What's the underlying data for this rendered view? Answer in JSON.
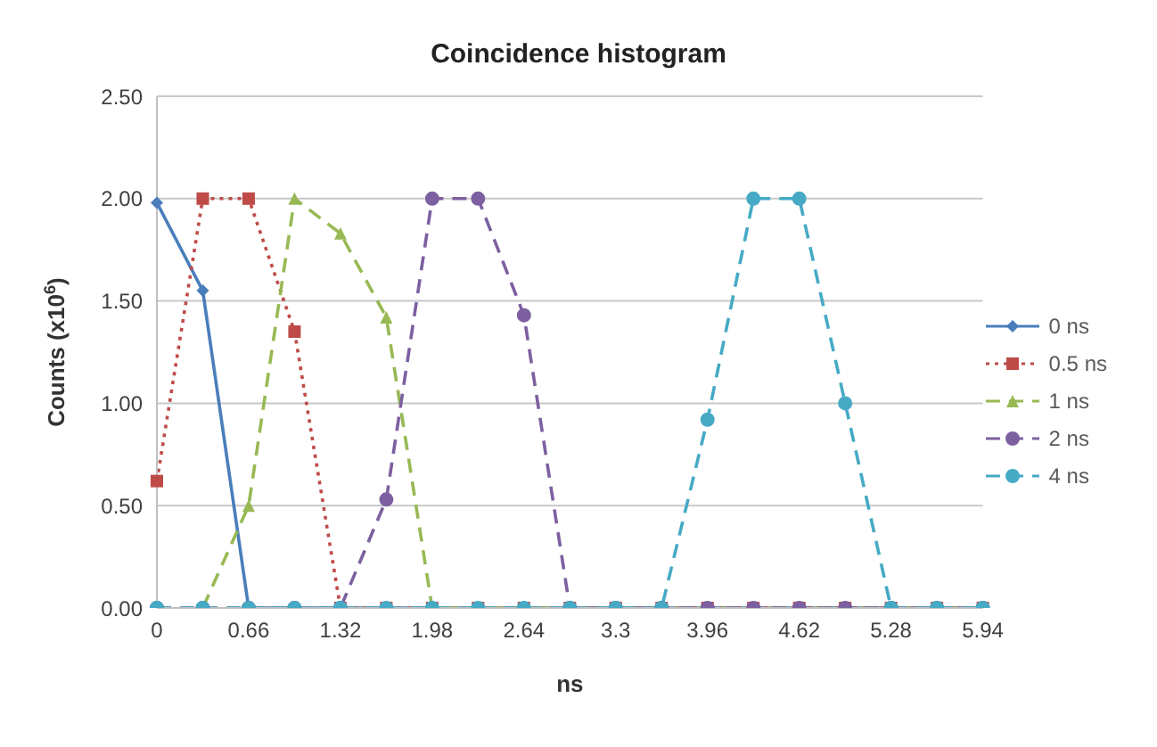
{
  "chart_data": {
    "type": "line",
    "title": "Coincidence histogram",
    "xlabel": "ns",
    "ylabel": "Counts (x10$^{6}$)",
    "categories": [
      "0",
      null,
      "0.66",
      null,
      "1.32",
      null,
      "1.98",
      null,
      "2.64",
      null,
      "3.3",
      null,
      "3.96",
      null,
      "4.62",
      null,
      "5.28",
      null,
      "5.94"
    ],
    "series": [
      {
        "name": "0 ns",
        "color": "#4a7ebb",
        "marker": "diamond",
        "line_style": "solid",
        "values": [
          1.98,
          1.55,
          0,
          0,
          0,
          0,
          0,
          0,
          0,
          0,
          0,
          0,
          0,
          0,
          0,
          0,
          0,
          0,
          0
        ]
      },
      {
        "name": "0.5 ns",
        "color": "#be4b48",
        "marker": "square",
        "line_style": "dotted",
        "values": [
          0.62,
          2.0,
          2.0,
          1.35,
          0,
          0,
          0,
          0,
          0,
          0,
          0,
          0,
          0,
          0,
          0,
          0,
          0,
          0,
          0
        ]
      },
      {
        "name": "1 ns",
        "color": "#98b954",
        "marker": "triangle",
        "line_style": "dashed",
        "values": [
          0,
          0,
          0.5,
          2.0,
          1.83,
          1.42,
          0,
          0,
          0,
          0,
          0,
          0,
          0,
          0,
          0,
          0,
          0,
          0,
          0
        ]
      },
      {
        "name": "2 ns",
        "color": "#7d60a0",
        "marker": "circle",
        "line_style": "dashed",
        "values": [
          0,
          0,
          0,
          0,
          0,
          0.53,
          2.0,
          2.0,
          1.43,
          0,
          0,
          0,
          0,
          0,
          0,
          0,
          0,
          0,
          0
        ]
      },
      {
        "name": "4 ns",
        "color": "#46aac5",
        "marker": "circle",
        "line_style": "dashed",
        "values": [
          0,
          0,
          0,
          0,
          0,
          0,
          0,
          0,
          0,
          0,
          0,
          0,
          0.92,
          2.0,
          2.0,
          1.0,
          0,
          0,
          0
        ]
      }
    ],
    "ylim": [
      0,
      2.5
    ],
    "yticks": [
      {
        "value": 0,
        "label": "0.00"
      },
      {
        "value": 0.5,
        "label": "0.50"
      },
      {
        "value": 1,
        "label": "1.00"
      },
      {
        "value": 1.5,
        "label": "1.50"
      },
      {
        "value": 2,
        "label": "2.00"
      },
      {
        "value": 2.5,
        "label": "2.50"
      }
    ],
    "grid": "y",
    "legend": "right"
  }
}
